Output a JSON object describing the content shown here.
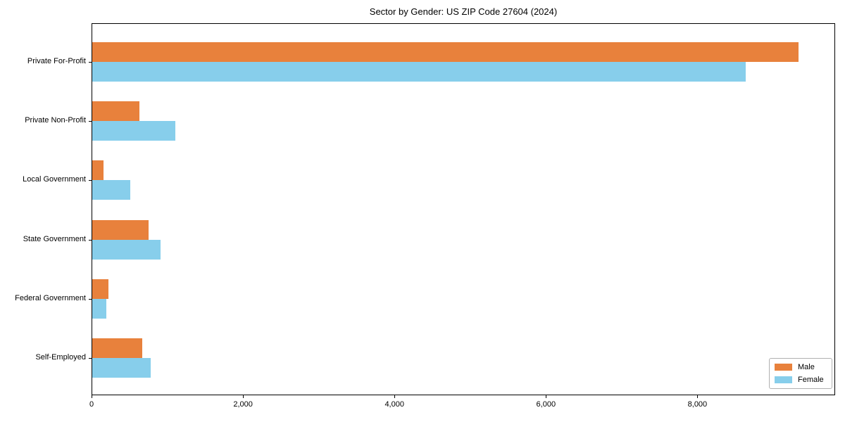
{
  "chart_data": {
    "type": "bar",
    "orientation": "horizontal",
    "title": "Sector by Gender: US ZIP Code 27604 (2024)",
    "categories": [
      "Private For-Profit",
      "Private Non-Profit",
      "Local Government",
      "State Government",
      "Federal Government",
      "Self-Employed"
    ],
    "series": [
      {
        "name": "Male",
        "color": "#e8813c",
        "values": [
          9330,
          620,
          150,
          740,
          215,
          660
        ]
      },
      {
        "name": "Female",
        "color": "#87ceeb",
        "values": [
          8630,
          1100,
          500,
          900,
          185,
          770
        ]
      }
    ],
    "xlabel": "",
    "ylabel": "",
    "xlim": [
      0,
      9800
    ],
    "xticks": [
      0,
      2000,
      4000,
      6000,
      8000
    ],
    "xtick_labels": [
      "0",
      "2,000",
      "4,000",
      "6,000",
      "8,000"
    ],
    "legend_position": "lower right",
    "grid": false,
    "background": "#ffffff"
  }
}
